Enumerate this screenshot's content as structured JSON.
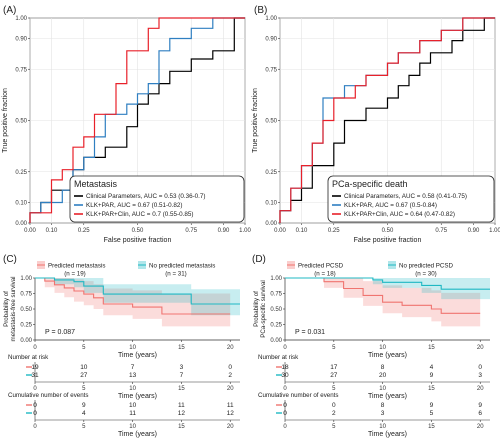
{
  "colors": {
    "black": "#000000",
    "blue": "#2f7fc1",
    "red": "#e8212a",
    "km_red": "#f07470",
    "km_teal": "#1fb8c3"
  },
  "chart_data": [
    {
      "panel": "(A)",
      "type": "line",
      "xlabel": "False positive fraction",
      "ylabel": "True positive fraction",
      "xlim": [
        0,
        1
      ],
      "ylim": [
        0,
        1
      ],
      "x_ticks": [
        "0.00",
        "0.10",
        "0.25",
        "0.50",
        "0.75",
        "0.90",
        "1.00"
      ],
      "y_ticks": [
        "0.00",
        "0.10",
        "0.25",
        "0.50",
        "0.75",
        "0.90",
        "1.00"
      ],
      "legend_title": "Metastasis",
      "series": [
        {
          "name": "Clinical Parameters, AUC = 0.53 (0.36-0.7)",
          "color": "#000000",
          "x": [
            0,
            0,
            0.05,
            0.05,
            0.1,
            0.1,
            0.2,
            0.2,
            0.25,
            0.25,
            0.35,
            0.35,
            0.45,
            0.45,
            0.5,
            0.5,
            0.55,
            0.55,
            0.6,
            0.6,
            0.65,
            0.65,
            0.75,
            0.75,
            0.85,
            0.85,
            0.95,
            0.95,
            1
          ],
          "y": [
            0,
            0.05,
            0.05,
            0.1,
            0.1,
            0.16,
            0.16,
            0.26,
            0.26,
            0.32,
            0.32,
            0.37,
            0.37,
            0.47,
            0.47,
            0.58,
            0.58,
            0.63,
            0.63,
            0.68,
            0.68,
            0.74,
            0.74,
            0.8,
            0.8,
            0.84,
            0.84,
            1,
            1
          ]
        },
        {
          "name": "KLK+PAR, AUC = 0.67 (0.51-0.82)",
          "color": "#2f7fc1",
          "x": [
            0,
            0,
            0.05,
            0.05,
            0.15,
            0.15,
            0.2,
            0.2,
            0.25,
            0.25,
            0.3,
            0.3,
            0.35,
            0.35,
            0.45,
            0.45,
            0.5,
            0.5,
            0.55,
            0.55,
            0.6,
            0.6,
            0.65,
            0.65,
            0.75,
            0.75,
            0.8,
            0.8,
            0.85,
            0.85,
            0.95,
            0.95,
            1
          ],
          "y": [
            0,
            0.05,
            0.05,
            0.1,
            0.1,
            0.16,
            0.16,
            0.26,
            0.26,
            0.32,
            0.32,
            0.42,
            0.42,
            0.53,
            0.53,
            0.58,
            0.58,
            0.63,
            0.63,
            0.68,
            0.68,
            0.84,
            0.84,
            0.9,
            0.9,
            0.95,
            0.95,
            0.95,
            0.95,
            1,
            1,
            1,
            1
          ]
        },
        {
          "name": "KLK+PAR+Clin, AUC = 0.7 (0.55-0.85)",
          "color": "#e8212a",
          "x": [
            0,
            0,
            0.1,
            0.1,
            0.15,
            0.15,
            0.2,
            0.2,
            0.25,
            0.25,
            0.3,
            0.3,
            0.4,
            0.4,
            0.45,
            0.45,
            0.55,
            0.55,
            0.6,
            0.6,
            0.8,
            0.8,
            1
          ],
          "y": [
            0,
            0.05,
            0.05,
            0.21,
            0.21,
            0.26,
            0.26,
            0.37,
            0.37,
            0.42,
            0.42,
            0.53,
            0.53,
            0.68,
            0.68,
            0.84,
            0.84,
            0.95,
            0.95,
            1,
            1,
            1,
            1
          ]
        }
      ]
    },
    {
      "panel": "(B)",
      "type": "line",
      "xlabel": "False positive fraction",
      "ylabel": "True positive fraction",
      "xlim": [
        0,
        1
      ],
      "ylim": [
        0,
        1
      ],
      "x_ticks": [
        "0.00",
        "0.10",
        "0.25",
        "0.50",
        "0.75",
        "0.90",
        "1.00"
      ],
      "y_ticks": [
        "0.00",
        "0.10",
        "0.25",
        "0.50",
        "0.75",
        "0.90",
        "1.00"
      ],
      "legend_title": "PCa-specific death",
      "series": [
        {
          "name": "Clinical Parameters, AUC = 0.58 (0.41-0.75)",
          "color": "#000000",
          "x": [
            0,
            0,
            0.05,
            0.05,
            0.1,
            0.1,
            0.15,
            0.15,
            0.25,
            0.25,
            0.3,
            0.3,
            0.4,
            0.4,
            0.5,
            0.5,
            0.55,
            0.55,
            0.6,
            0.6,
            0.65,
            0.65,
            0.7,
            0.7,
            0.8,
            0.8,
            0.85,
            0.85,
            0.95,
            0.95,
            1
          ],
          "y": [
            0,
            0.06,
            0.06,
            0.11,
            0.11,
            0.17,
            0.17,
            0.28,
            0.28,
            0.39,
            0.39,
            0.5,
            0.5,
            0.56,
            0.56,
            0.61,
            0.61,
            0.67,
            0.67,
            0.72,
            0.72,
            0.78,
            0.78,
            0.83,
            0.83,
            0.89,
            0.89,
            0.94,
            0.94,
            1,
            1
          ]
        },
        {
          "name": "KLK+PAR, AUC = 0.67 (0.5-0.84)",
          "color": "#2f7fc1",
          "x": [
            0,
            0,
            0.05,
            0.05,
            0.1,
            0.1,
            0.15,
            0.15,
            0.2,
            0.2,
            0.3,
            0.3,
            0.4,
            0.4,
            0.5,
            0.5,
            0.55,
            0.55,
            0.65,
            0.65,
            0.75,
            0.75,
            0.85,
            0.85,
            1
          ],
          "y": [
            0,
            0.06,
            0.06,
            0.17,
            0.17,
            0.28,
            0.28,
            0.39,
            0.39,
            0.61,
            0.61,
            0.67,
            0.67,
            0.72,
            0.72,
            0.78,
            0.78,
            0.83,
            0.83,
            0.89,
            0.89,
            0.94,
            0.94,
            1,
            1
          ]
        },
        {
          "name": "KLK+PAR+Clin, AUC = 0.64 (0.47-0.82)",
          "color": "#e8212a",
          "x": [
            0,
            0,
            0.05,
            0.05,
            0.1,
            0.1,
            0.15,
            0.15,
            0.2,
            0.2,
            0.25,
            0.25,
            0.35,
            0.35,
            0.4,
            0.4,
            0.5,
            0.5,
            0.55,
            0.55,
            0.65,
            0.65,
            0.75,
            0.75,
            0.85,
            0.85,
            1
          ],
          "y": [
            0,
            0.06,
            0.06,
            0.17,
            0.17,
            0.28,
            0.28,
            0.39,
            0.39,
            0.5,
            0.5,
            0.61,
            0.61,
            0.67,
            0.67,
            0.72,
            0.72,
            0.78,
            0.78,
            0.83,
            0.83,
            0.89,
            0.89,
            0.94,
            0.94,
            1,
            1
          ]
        }
      ]
    },
    {
      "panel": "(C)",
      "type": "line",
      "xlabel": "Time (years)",
      "ylabel": "Probability of metastasis-free survival",
      "xlim": [
        0,
        21
      ],
      "ylim": [
        0,
        1
      ],
      "x_ticks": [
        "0",
        "5",
        "10",
        "15",
        "20"
      ],
      "y_ticks": [
        "0.00",
        "0.25",
        "0.50",
        "0.75",
        "1.00"
      ],
      "pvalue": "P = 0.087",
      "series": [
        {
          "name": "Predicted metastasis",
          "n": "(n = 19)",
          "color": "#f07470",
          "x": [
            0,
            1,
            1,
            2,
            2,
            3,
            3,
            4,
            4,
            5,
            5,
            6,
            6,
            7,
            7,
            10,
            10,
            13,
            13,
            20
          ],
          "y": [
            1,
            1,
            0.95,
            0.95,
            0.89,
            0.89,
            0.84,
            0.84,
            0.79,
            0.79,
            0.74,
            0.74,
            0.68,
            0.68,
            0.58,
            0.58,
            0.53,
            0.53,
            0.42,
            0.42
          ],
          "ci_low": [
            1,
            1,
            0.85,
            0.85,
            0.76,
            0.76,
            0.69,
            0.69,
            0.62,
            0.62,
            0.56,
            0.56,
            0.5,
            0.5,
            0.4,
            0.4,
            0.34,
            0.34,
            0.22,
            0.22
          ],
          "ci_high": [
            1,
            1,
            1,
            1,
            1,
            1,
            1,
            1,
            0.98,
            0.98,
            0.95,
            0.95,
            0.9,
            0.9,
            0.83,
            0.83,
            0.8,
            0.8,
            0.75,
            0.75
          ]
        },
        {
          "name": "No predicted metastasis",
          "n": "(n = 31)",
          "color": "#1fb8c3",
          "x": [
            0,
            2,
            2,
            4,
            4,
            5,
            5,
            7,
            7,
            16,
            16,
            21
          ],
          "y": [
            1,
            1,
            0.97,
            0.97,
            0.94,
            0.94,
            0.87,
            0.87,
            0.74,
            0.74,
            0.58,
            0.58
          ],
          "ci_low": [
            1,
            1,
            0.9,
            0.9,
            0.85,
            0.85,
            0.76,
            0.76,
            0.6,
            0.6,
            0.4,
            0.4
          ],
          "ci_high": [
            1,
            1,
            1,
            1,
            1,
            1,
            1,
            1,
            0.9,
            0.9,
            0.82,
            0.82
          ]
        }
      ],
      "risk_table": {
        "title": "Number at risk",
        "rows": [
          [
            "19",
            "10",
            "7",
            "3",
            "0"
          ],
          [
            "31",
            "27",
            "13",
            "7",
            "2"
          ]
        ]
      },
      "events_table": {
        "title": "Cumulative number of events",
        "rows": [
          [
            "0",
            "9",
            "10",
            "11",
            "11"
          ],
          [
            "0",
            "4",
            "11",
            "12",
            "12"
          ]
        ]
      }
    },
    {
      "panel": "(D)",
      "type": "line",
      "xlabel": "Time (years)",
      "ylabel": "Probability of PCa-specific survival",
      "xlim": [
        0,
        21
      ],
      "ylim": [
        0,
        1
      ],
      "x_ticks": [
        "0",
        "5",
        "10",
        "15",
        "20"
      ],
      "y_ticks": [
        "0.00",
        "0.25",
        "0.50",
        "0.75",
        "1.00"
      ],
      "pvalue": "P = 0.031",
      "series": [
        {
          "name": "Predicted PCSD",
          "n": "(n = 18)",
          "color": "#f07470",
          "x": [
            0,
            4,
            4,
            6,
            6,
            8,
            8,
            10,
            10,
            12,
            12,
            15,
            15,
            16,
            16,
            20
          ],
          "y": [
            1,
            1,
            0.94,
            0.94,
            0.83,
            0.83,
            0.72,
            0.72,
            0.61,
            0.61,
            0.56,
            0.56,
            0.5,
            0.5,
            0.43,
            0.43
          ],
          "ci_low": [
            1,
            1,
            0.84,
            0.84,
            0.68,
            0.68,
            0.55,
            0.55,
            0.43,
            0.43,
            0.37,
            0.37,
            0.3,
            0.3,
            0.22,
            0.22
          ],
          "ci_high": [
            1,
            1,
            1,
            1,
            1,
            1,
            0.95,
            0.95,
            0.88,
            0.88,
            0.84,
            0.84,
            0.8,
            0.8,
            0.76,
            0.76
          ]
        },
        {
          "name": "No predicted PCSD",
          "n": "(n = 30)",
          "color": "#1fb8c3",
          "x": [
            0,
            9,
            9,
            10,
            10,
            14,
            14,
            16,
            16,
            21
          ],
          "y": [
            1,
            1,
            0.97,
            0.97,
            0.93,
            0.93,
            0.88,
            0.88,
            0.82,
            0.82
          ],
          "ci_low": [
            1,
            1,
            0.9,
            0.9,
            0.84,
            0.84,
            0.76,
            0.76,
            0.66,
            0.66
          ],
          "ci_high": [
            1,
            1,
            1,
            1,
            1,
            1,
            1,
            1,
            1,
            1
          ]
        }
      ],
      "risk_table": {
        "title": "Number at risk",
        "rows": [
          [
            "18",
            "17",
            "8",
            "4",
            "0"
          ],
          [
            "30",
            "27",
            "20",
            "9",
            "3"
          ]
        ]
      },
      "events_table": {
        "title": "Cumulative number of events",
        "rows": [
          [
            "0",
            "0",
            "8",
            "9",
            "9"
          ],
          [
            "0",
            "2",
            "3",
            "5",
            "6"
          ]
        ]
      }
    }
  ]
}
